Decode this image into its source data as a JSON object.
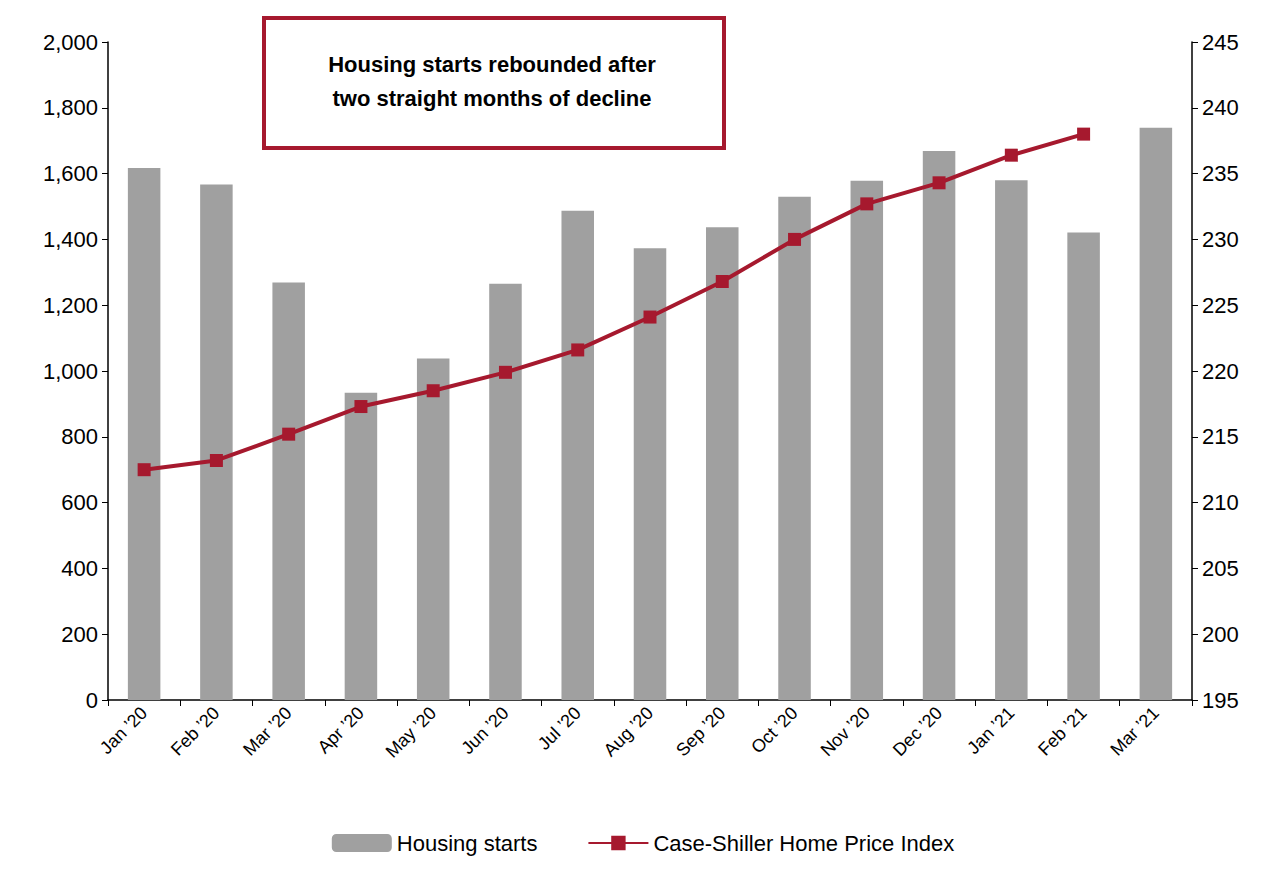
{
  "chart_data": {
    "type": "bar",
    "annotation": "Housing starts rebounded after\ntwo straight months of decline",
    "categories": [
      "Jan ’20",
      "Feb ’20",
      "Mar ’20",
      "Apr ’20",
      "May ’20",
      "Jun ’20",
      "Jul ’20",
      "Aug ’20",
      "Sep ’20",
      "Oct ’20",
      "Nov ’20",
      "Dec ’20",
      "Jan ’21",
      "Feb ’21",
      "Mar ’21"
    ],
    "series": [
      {
        "name": "Housing starts",
        "type": "bar",
        "color": "#a0a0a0",
        "values": [
          1617,
          1567,
          1269,
          934,
          1038,
          1265,
          1487,
          1373,
          1437,
          1530,
          1578,
          1669,
          1580,
          1421,
          1739
        ]
      },
      {
        "name": "Case-Shiller Home Price Index",
        "type": "line",
        "axis": "y2",
        "color": "#a6192e",
        "marker": "square",
        "line_style": "solid",
        "values": [
          212.5,
          213.2,
          215.2,
          217.3,
          218.5,
          219.9,
          221.6,
          224.1,
          226.8,
          230.0,
          232.7,
          234.3,
          236.4,
          238.0,
          null
        ]
      }
    ],
    "ylim": [
      0,
      2000
    ],
    "yticks": [
      0,
      200,
      400,
      600,
      800,
      {
        "value": 1000,
        "label": "1,000"
      },
      {
        "value": 1200,
        "label": "1,200"
      },
      {
        "value": 1400,
        "label": "1,400"
      },
      {
        "value": 1600,
        "label": "1,600"
      },
      {
        "value": 1800,
        "label": "1,800"
      },
      {
        "value": 2000,
        "label": "2,000"
      }
    ],
    "y2lim": [
      195,
      245
    ],
    "y2ticks": [
      195,
      200,
      205,
      210,
      215,
      220,
      225,
      230,
      235,
      240,
      245
    ],
    "grid": false,
    "legend": "bottom"
  }
}
